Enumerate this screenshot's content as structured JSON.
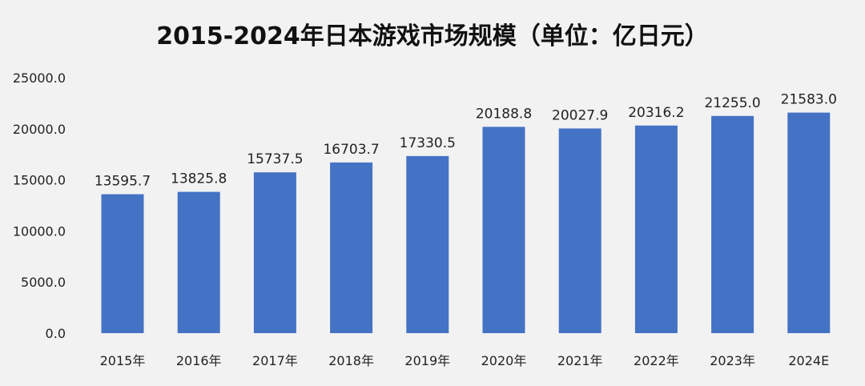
{
  "chart_data": {
    "type": "bar",
    "title": "2015-2024年日本游戏市场规模（单位：亿日元）",
    "categories": [
      "2015年",
      "2016年",
      "2017年",
      "2018年",
      "2019年",
      "2020年",
      "2021年",
      "2022年",
      "2023年",
      "2024E"
    ],
    "values": [
      13595.7,
      13825.8,
      15737.5,
      16703.7,
      17330.5,
      20188.8,
      20027.9,
      20316.2,
      21255.0,
      21583.0
    ],
    "data_labels": [
      "13595.7",
      "13825.8",
      "15737.5",
      "16703.7",
      "17330.5",
      "20188.8",
      "20027.9",
      "20316.2",
      "21255.0",
      "21583.0"
    ],
    "ylim": [
      0,
      25000
    ],
    "yticks": [
      0,
      5000,
      10000,
      15000,
      20000,
      25000
    ],
    "ytick_labels": [
      "0.0",
      "5000.0",
      "10000.0",
      "15000.0",
      "20000.0",
      "25000.0"
    ],
    "xlabel": "",
    "ylabel": "",
    "grid": false,
    "bar_color": "#4472c4"
  }
}
